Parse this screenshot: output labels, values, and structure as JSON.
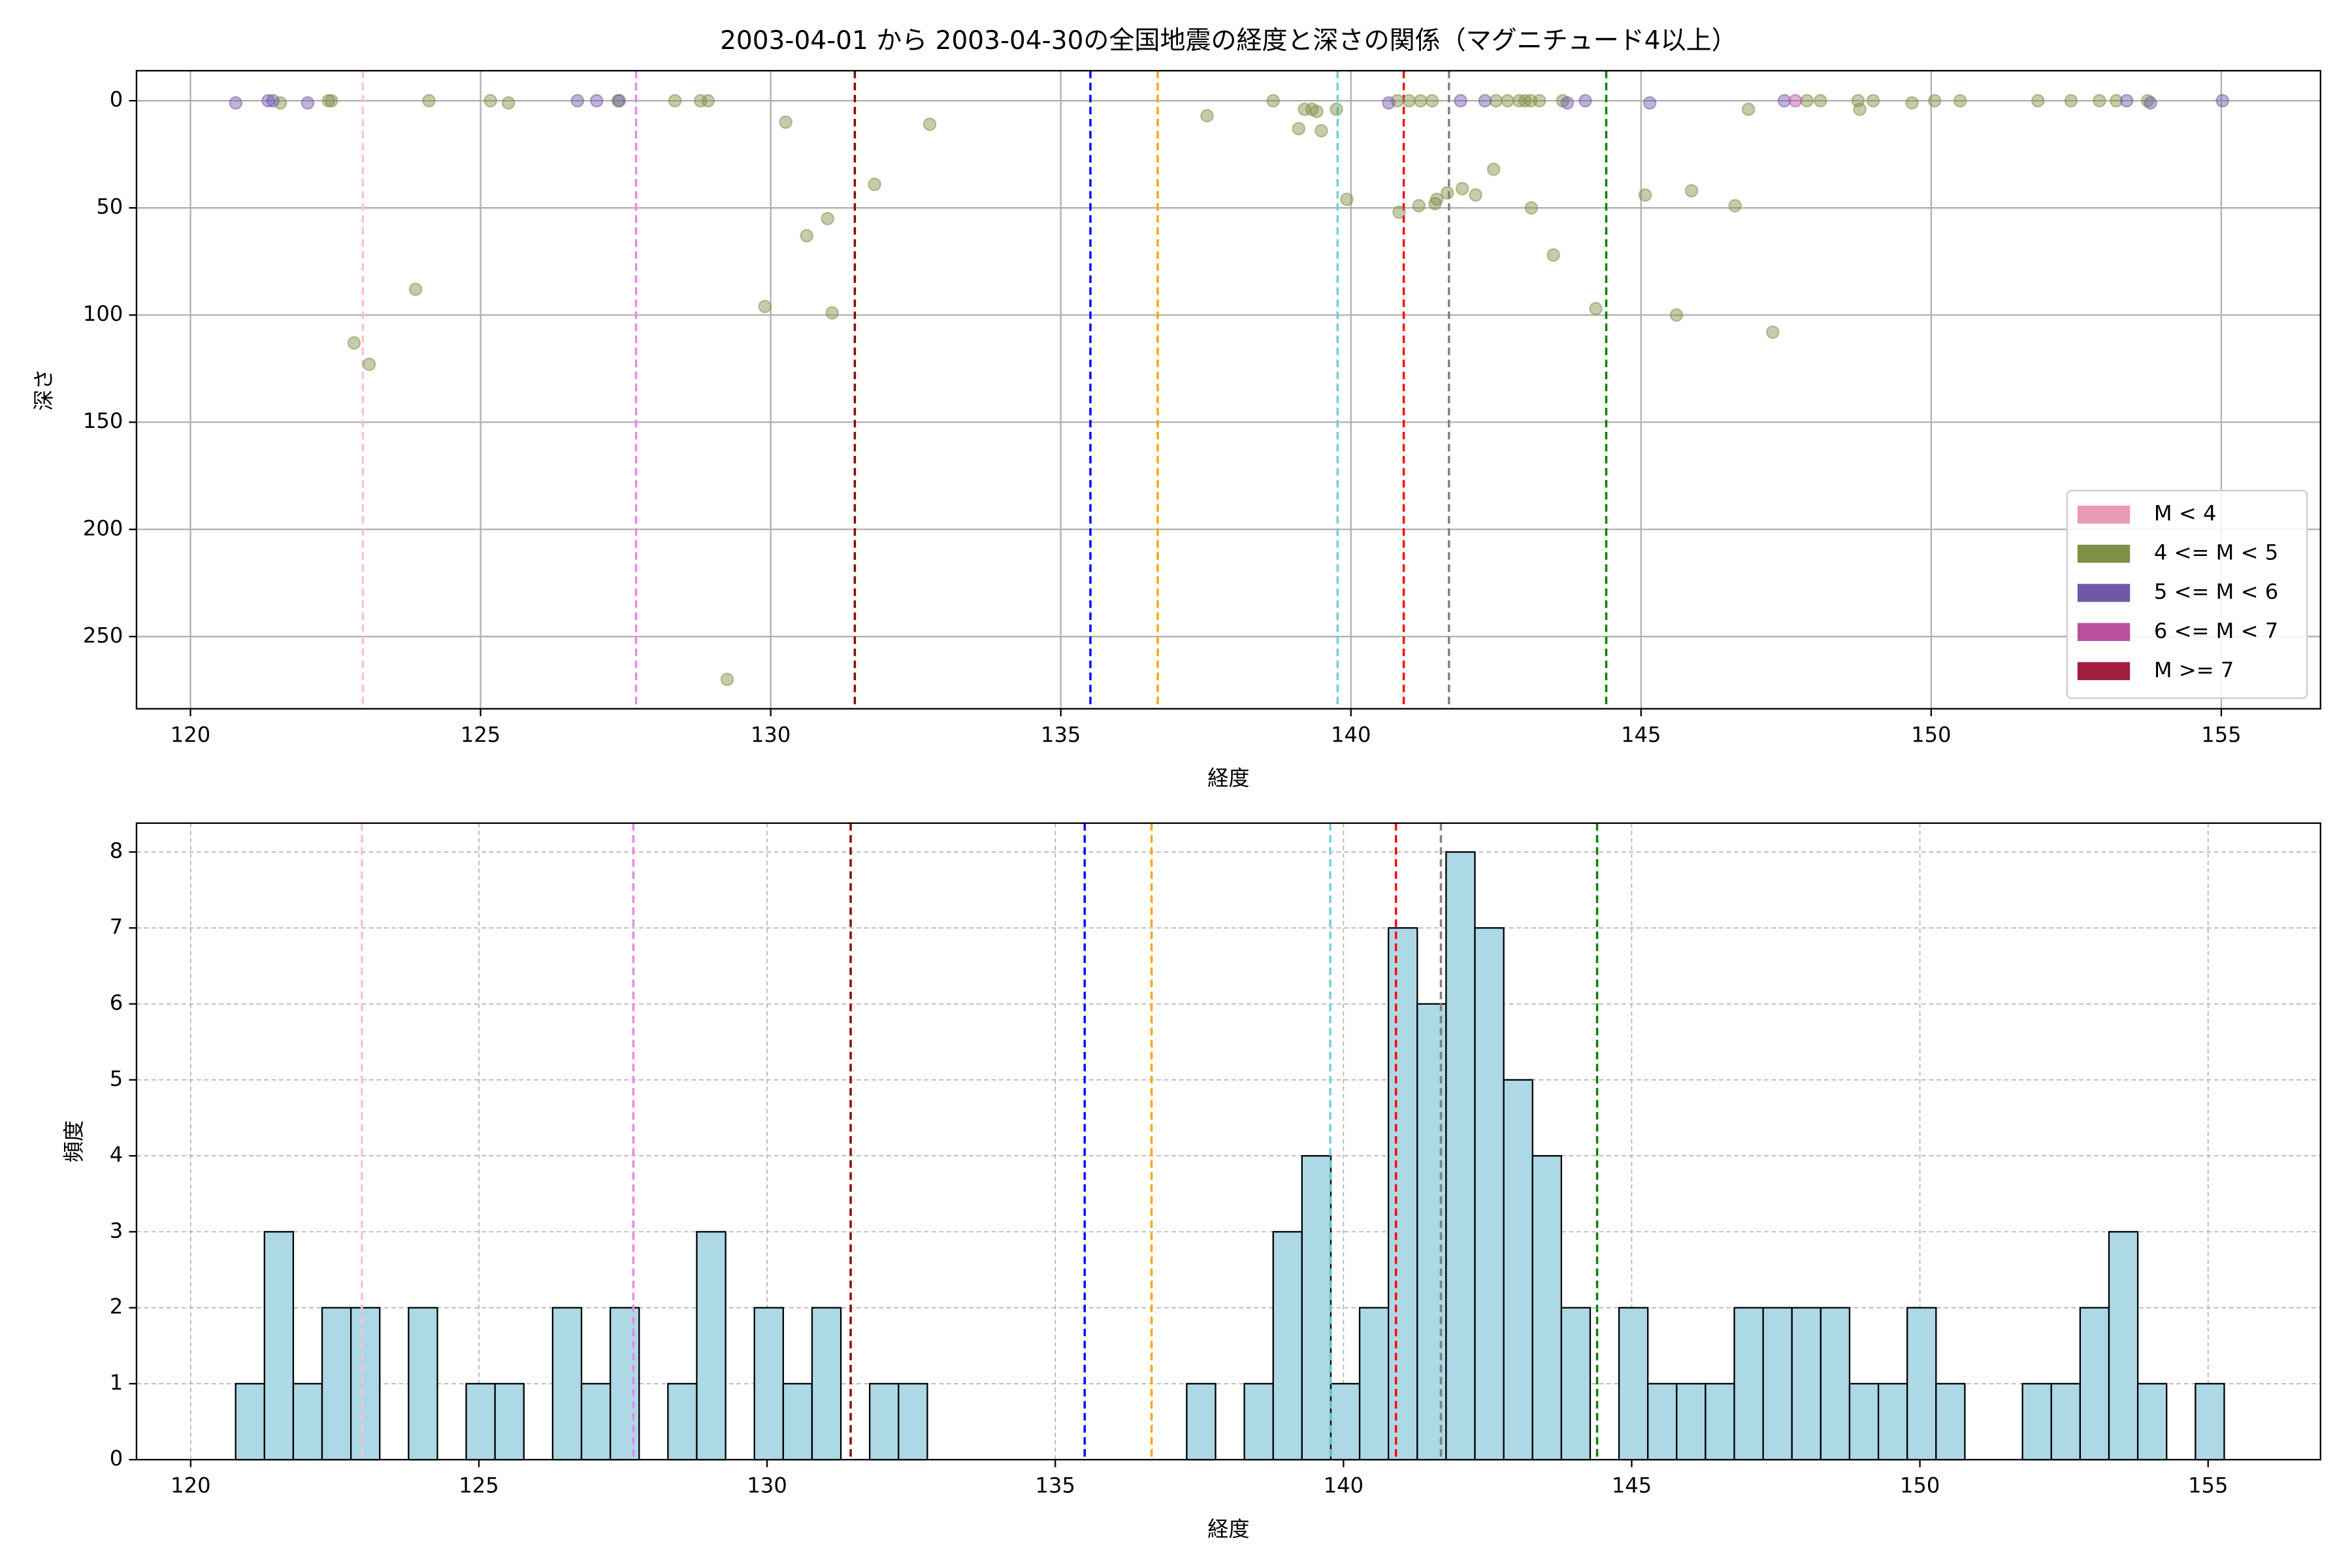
{
  "chart_data": [
    {
      "type": "scatter",
      "title": "2003-04-01 から 2003-04-30の全国地震の経度と深さの関係（マグニチュード4以上）",
      "xlabel": "経度",
      "ylabel": "深さ",
      "xlim": [
        119.07,
        156.71
      ],
      "ylim": [
        283.7,
        -14
      ],
      "xticks": [
        120,
        125,
        130,
        135,
        140,
        145,
        150,
        155
      ],
      "yticks": [
        0,
        50,
        100,
        150,
        200,
        250
      ],
      "grid": true,
      "legend": "lower right",
      "vlines": [
        {
          "x": 122.97,
          "color": "pink"
        },
        {
          "x": 127.68,
          "color": "violet"
        },
        {
          "x": 131.45,
          "color": "darkred"
        },
        {
          "x": 135.51,
          "color": "blue"
        },
        {
          "x": 136.67,
          "color": "orange"
        },
        {
          "x": 139.77,
          "color": "#6fd0d8"
        },
        {
          "x": 140.91,
          "color": "red"
        },
        {
          "x": 141.69,
          "color": "gray"
        },
        {
          "x": 144.4,
          "color": "green"
        }
      ],
      "series": [
        {
          "name": "M < 4",
          "color": "#e899b5",
          "x": [],
          "values": []
        },
        {
          "name": "4 <= M < 5",
          "color": "#7f8f45",
          "x": [
            121.55,
            122.38,
            122.43,
            122.82,
            123.08,
            123.88,
            124.11,
            125.17,
            125.48,
            127.37,
            128.35,
            128.79,
            128.92,
            129.25,
            129.9,
            130.26,
            130.62,
            130.98,
            131.06,
            131.79,
            132.74,
            137.52,
            138.66,
            139.1,
            139.2,
            139.33,
            139.41,
            139.49,
            139.75,
            139.93,
            140.83,
            140.8,
            141.0,
            141.17,
            141.2,
            141.4,
            141.45,
            141.48,
            141.66,
            141.92,
            142.15,
            142.46,
            142.5,
            142.7,
            142.9,
            143.0,
            143.1,
            143.11,
            143.25,
            143.49,
            143.65,
            144.22,
            145.07,
            145.61,
            145.87,
            146.62,
            146.85,
            147.27,
            147.86,
            148.09,
            148.74,
            148.77,
            149.0,
            149.67,
            150.06,
            150.5,
            151.84,
            152.41,
            152.9,
            153.19,
            153.73
          ],
          "values": [
            1,
            0,
            0,
            113,
            123,
            88,
            0,
            0,
            1,
            0,
            0,
            0,
            0,
            270,
            96,
            10,
            63,
            55,
            99,
            39,
            11,
            7,
            0,
            13,
            4,
            4,
            5,
            14,
            4,
            46,
            52,
            0,
            0,
            49,
            0,
            0,
            48,
            46,
            43,
            41,
            44,
            32,
            0,
            0,
            0,
            0,
            0,
            50,
            0,
            72,
            0,
            97,
            44,
            100,
            42,
            49,
            4,
            108,
            0,
            0,
            0,
            4,
            0,
            1,
            0,
            0,
            0,
            0,
            0,
            0,
            0
          ]
        },
        {
          "name": "5 <= M < 6",
          "color": "#7058a8",
          "x": [
            120.78,
            121.34,
            121.42,
            122.02,
            126.67,
            127.0,
            127.39,
            140.65,
            141.89,
            142.31,
            143.73,
            144.04,
            145.15,
            147.47,
            153.37,
            153.78,
            155.02
          ],
          "values": [
            1,
            0,
            0,
            1,
            0,
            0,
            0,
            1,
            0,
            0,
            1,
            0,
            1,
            0,
            0,
            1,
            0
          ]
        },
        {
          "name": "6 <= M < 7",
          "color": "#b8509c",
          "x": [
            147.66
          ],
          "values": [
            0
          ]
        },
        {
          "name": "M >= 7",
          "color": "#a01e42",
          "x": [],
          "values": []
        }
      ]
    },
    {
      "type": "histogram",
      "xlabel": "経度",
      "ylabel": "頻度",
      "xlim": [
        119.06,
        156.95
      ],
      "ylim": [
        0,
        8.38
      ],
      "xticks": [
        120,
        125,
        130,
        135,
        140,
        145,
        150,
        155
      ],
      "yticks": [
        0,
        1,
        2,
        3,
        4,
        5,
        6,
        7,
        8
      ],
      "grid": "dashed",
      "color": "#add8e6",
      "edgecolor": "black",
      "bins": [
        120.78,
        121.28,
        121.78,
        122.28,
        122.78,
        123.28,
        123.78,
        124.28,
        124.78,
        125.28,
        125.78,
        126.28,
        126.78,
        127.28,
        127.78,
        128.28,
        128.78,
        129.28,
        129.78,
        130.28,
        130.78,
        131.28,
        131.78,
        132.28,
        132.78,
        133.28,
        133.78,
        134.28,
        134.78,
        135.28,
        135.78,
        136.28,
        136.78,
        137.28,
        137.78,
        138.28,
        138.78,
        139.28,
        139.78,
        140.28,
        140.78,
        141.28,
        141.78,
        142.28,
        142.78,
        143.28,
        143.78,
        144.28,
        144.78,
        145.28,
        145.78,
        146.28,
        146.78,
        147.28,
        147.78,
        148.28,
        148.78,
        149.28,
        149.78,
        150.28,
        150.78,
        151.28,
        151.78,
        152.28,
        152.78,
        153.28,
        153.78,
        154.28,
        154.78,
        155.28
      ],
      "values": [
        1,
        3,
        1,
        2,
        2,
        0,
        2,
        0,
        1,
        1,
        0,
        2,
        1,
        2,
        0,
        1,
        3,
        0,
        2,
        1,
        2,
        0,
        1,
        1,
        0,
        0,
        0,
        0,
        0,
        0,
        0,
        0,
        0,
        1,
        0,
        1,
        3,
        4,
        1,
        2,
        7,
        6,
        8,
        7,
        5,
        4,
        2,
        0,
        2,
        1,
        1,
        1,
        2,
        2,
        2,
        2,
        1,
        1,
        2,
        1,
        0,
        0,
        1,
        1,
        2,
        3,
        1,
        0,
        1
      ],
      "vlines": [
        {
          "x": 122.97,
          "color": "pink"
        },
        {
          "x": 127.68,
          "color": "violet"
        },
        {
          "x": 131.45,
          "color": "darkred"
        },
        {
          "x": 135.51,
          "color": "blue"
        },
        {
          "x": 136.67,
          "color": "orange"
        },
        {
          "x": 139.77,
          "color": "#6fd0d8"
        },
        {
          "x": 140.91,
          "color": "red"
        },
        {
          "x": 141.69,
          "color": "gray"
        },
        {
          "x": 144.4,
          "color": "green"
        }
      ]
    }
  ]
}
